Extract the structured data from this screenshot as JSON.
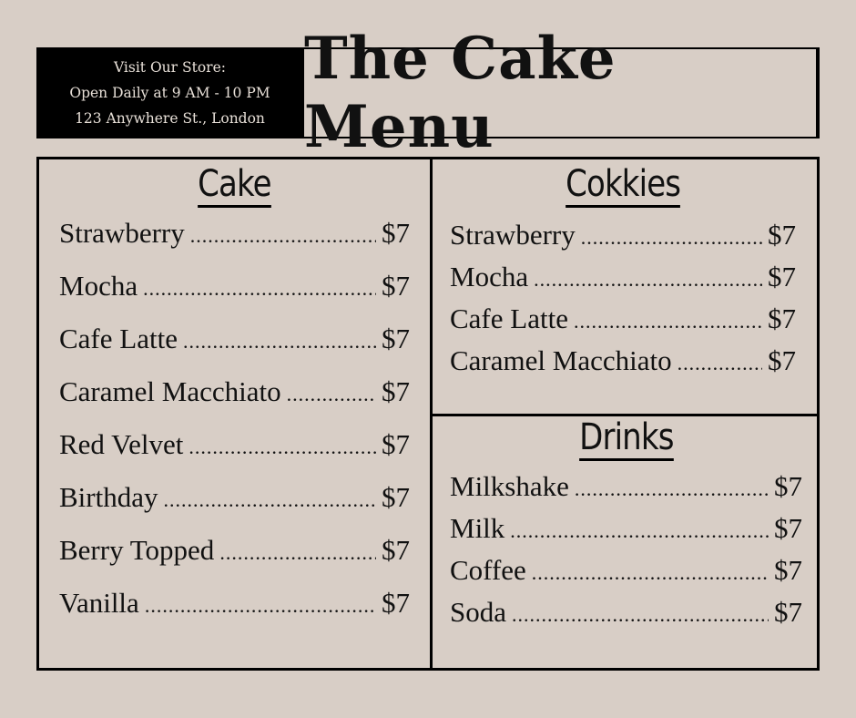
{
  "store_info": {
    "line1": "Visit Our Store:",
    "line2": "Open Daily at 9 AM - 10 PM",
    "line3": "123 Anywhere St., London"
  },
  "title": "The Cake Menu",
  "colors": {
    "background": "#d8cec6",
    "border": "#000000",
    "info_text": "#e8e0d8"
  },
  "sections": {
    "cake": {
      "heading": "Cake",
      "items": [
        {
          "name": "Strawberry",
          "price": "$7"
        },
        {
          "name": "Mocha",
          "price": "$7"
        },
        {
          "name": "Cafe Latte",
          "price": "$7"
        },
        {
          "name": "Caramel Macchiato",
          "price": "$7"
        },
        {
          "name": "Red Velvet",
          "price": "$7"
        },
        {
          "name": "Birthday",
          "price": "$7"
        },
        {
          "name": "Berry Topped",
          "price": "$7"
        },
        {
          "name": "Vanilla",
          "price": "$7"
        }
      ]
    },
    "cookies": {
      "heading": "Cokkies",
      "items": [
        {
          "name": "Strawberry",
          "price": "$7"
        },
        {
          "name": "Mocha",
          "price": "$7"
        },
        {
          "name": "Cafe Latte",
          "price": "$7"
        },
        {
          "name": "Caramel Macchiato",
          "price": "$7"
        }
      ]
    },
    "drinks": {
      "heading": "Drinks",
      "items": [
        {
          "name": "Milkshake",
          "price": "$7"
        },
        {
          "name": "Milk",
          "price": "$7"
        },
        {
          "name": "Coffee",
          "price": "$7"
        },
        {
          "name": "Soda",
          "price": "$7"
        }
      ]
    }
  }
}
